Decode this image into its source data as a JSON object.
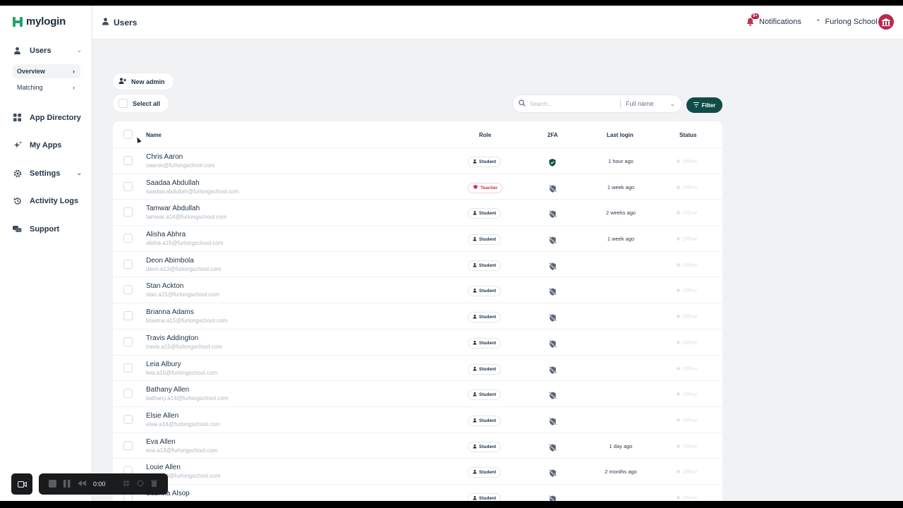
{
  "app": {
    "logo_text": "mylogin",
    "page_title": "Users"
  },
  "sidebar": {
    "items": [
      {
        "label": "Users",
        "icon": "user-icon"
      },
      {
        "label": "App Directory",
        "icon": "grid-icon"
      },
      {
        "label": "My Apps",
        "icon": "sparkle-icon"
      },
      {
        "label": "Settings",
        "icon": "gear-icon"
      },
      {
        "label": "Activity Logs",
        "icon": "history-icon"
      },
      {
        "label": "Support",
        "icon": "chat-icon"
      }
    ],
    "sub_items": [
      {
        "label": "Overview",
        "active": true
      },
      {
        "label": "Matching",
        "active": false
      }
    ]
  },
  "header": {
    "notifications_label": "Notifications",
    "notifications_badge": "9+",
    "school_name": "Furlong School"
  },
  "toolbar": {
    "new_admin_label": "New admin",
    "select_all_label": "Select all",
    "search_placeholder": "Search...",
    "search_field": "Full name",
    "filter_label": "Filter"
  },
  "table": {
    "columns": {
      "name": "Name",
      "role": "Role",
      "tfa": "2FA",
      "last_login": "Last login",
      "status": "Status"
    },
    "rows": [
      {
        "name": "Chris Aaron",
        "email": "caaron@furlongschool.com",
        "role": "Student",
        "tfa": true,
        "last_login": "1 hour ago",
        "status": "Offline"
      },
      {
        "name": "Saadaa Abdullah",
        "email": "saadaa.abdullah@furlongschool.com",
        "role": "Teacher",
        "tfa": false,
        "last_login": "1 week ago",
        "status": "Offline"
      },
      {
        "name": "Tamwar Abdullah",
        "email": "tamwar.a14@furlongschool.com",
        "role": "Student",
        "tfa": false,
        "last_login": "2 weeks ago",
        "status": "Offline"
      },
      {
        "name": "Alisha Abhra",
        "email": "alisha.a15@furlongschool.com",
        "role": "Student",
        "tfa": false,
        "last_login": "1 week ago",
        "status": "Offline"
      },
      {
        "name": "Deon Abimbola",
        "email": "deon.a13@furlongschool.com",
        "role": "Student",
        "tfa": false,
        "last_login": "",
        "status": "Offline"
      },
      {
        "name": "Stan Ackton",
        "email": "stan.a15@furlongschool.com",
        "role": "Student",
        "tfa": false,
        "last_login": "",
        "status": "Offline"
      },
      {
        "name": "Brianna Adams",
        "email": "brianna.a15@furlongschool.com",
        "role": "Student",
        "tfa": false,
        "last_login": "",
        "status": "Offline"
      },
      {
        "name": "Travis Addington",
        "email": "travis.a15@furlongschool.com",
        "role": "Student",
        "tfa": false,
        "last_login": "",
        "status": "Offline"
      },
      {
        "name": "Leia Albury",
        "email": "leia.a15@furlongschool.com",
        "role": "Student",
        "tfa": false,
        "last_login": "",
        "status": "Offline"
      },
      {
        "name": "Bathany Allen",
        "email": "bathany.a14@furlongschool.com",
        "role": "Student",
        "tfa": false,
        "last_login": "",
        "status": "Offline"
      },
      {
        "name": "Elsie Allen",
        "email": "elsie.a14@furlongschool.com",
        "role": "Student",
        "tfa": false,
        "last_login": "",
        "status": "Offline"
      },
      {
        "name": "Eva Allen",
        "email": "eva.a13@furlongschool.com",
        "role": "Student",
        "tfa": false,
        "last_login": "1 day ago",
        "status": "Offline"
      },
      {
        "name": "Louie Allen",
        "email": "louie.a14@furlongschool.com",
        "role": "Student",
        "tfa": false,
        "last_login": "2 months ago",
        "status": "Offline"
      },
      {
        "name": "Sabrina Alsop",
        "email": "",
        "role": "Student",
        "tfa": false,
        "last_login": "",
        "status": "Offline"
      }
    ]
  },
  "recorder": {
    "time": "0:00"
  },
  "colors": {
    "brand_green": "#23a36b",
    "filter_bg": "#0f4c47",
    "teacher_red": "#c2344f",
    "avatar": "#b8284f"
  }
}
